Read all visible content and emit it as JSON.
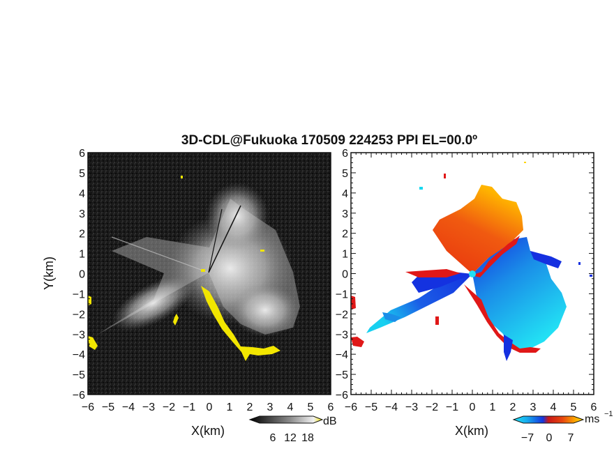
{
  "chart_data": [
    {
      "type": "heatmap",
      "title": "3D-CDL@Fukuoka 170509 224253 PPI EL=00.0º",
      "xlabel": "X(km)",
      "ylabel": "Y(km)",
      "xlim": [
        -6,
        6
      ],
      "ylim": [
        -6,
        6
      ],
      "x_ticks": [
        "−6",
        "−5",
        "−4",
        "−3",
        "−2",
        "−1",
        "0",
        "1",
        "2",
        "3",
        "4",
        "5",
        "6"
      ],
      "y_ticks": [
        "6",
        "5",
        "4",
        "3",
        "2",
        "1",
        "0",
        "−1",
        "−2",
        "−3",
        "−4",
        "−5",
        "−6"
      ],
      "colorbar": {
        "unit": "dB",
        "ticks": [
          "6",
          "12",
          "18"
        ],
        "range": [
          0,
          21
        ]
      }
    },
    {
      "type": "heatmap",
      "xlabel": "X(km)",
      "xlim": [
        -6,
        6
      ],
      "ylim": [
        -6,
        6
      ],
      "x_ticks": [
        "−6",
        "−5",
        "−4",
        "−3",
        "−2",
        "−1",
        "0",
        "1",
        "2",
        "3",
        "4",
        "5",
        "6"
      ],
      "y_ticks": [
        "6",
        "5",
        "4",
        "3",
        "2",
        "1",
        "0",
        "−1",
        "−2",
        "−3",
        "−4",
        "−5",
        "−6"
      ],
      "colorbar": {
        "unit": "ms",
        "unit_exponent": "−1",
        "ticks": [
          "−7",
          "0",
          "7"
        ],
        "range": [
          -10,
          10
        ]
      }
    }
  ],
  "colors": {
    "background_left": "#161616",
    "echo_white": "#d8d8d8",
    "highlight_yellow": "#f2e600",
    "velocity_negative_strong": "#1230e0",
    "velocity_negative_weak": "#18d8f0",
    "velocity_positive": "#e84a10",
    "velocity_positive_strong": "#e01818",
    "velocity_max": "#ffd400"
  }
}
